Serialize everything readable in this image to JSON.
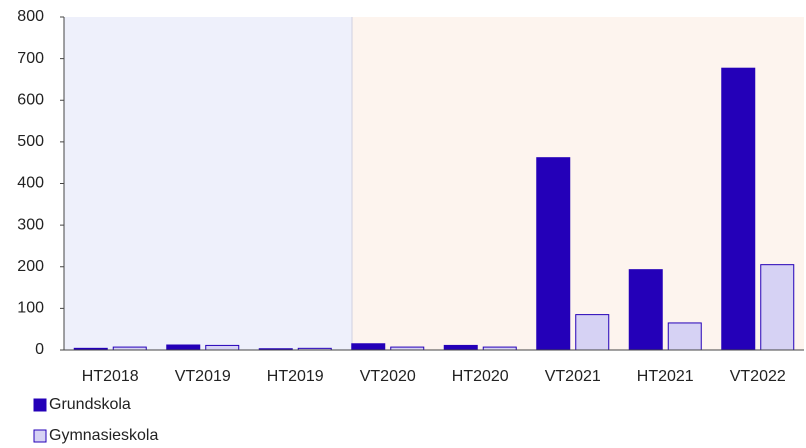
{
  "chart_data": {
    "type": "bar",
    "categories": [
      "HT2018",
      "VT2019",
      "HT2019",
      "VT2020",
      "HT2020",
      "VT2021",
      "HT2021",
      "VT2022"
    ],
    "series": [
      {
        "name": "Grundskola",
        "color": "#2400b8",
        "values": [
          4,
          12,
          3,
          15,
          11,
          462,
          193,
          677
        ]
      },
      {
        "name": "Gymnasieskola",
        "color": "#d6d2f4",
        "values": [
          7,
          11,
          4,
          7,
          7,
          85,
          65,
          205
        ]
      }
    ],
    "ylim": [
      0,
      800
    ],
    "yticks": [
      0,
      100,
      200,
      300,
      400,
      500,
      600,
      700,
      800
    ],
    "grid": false
  }
}
